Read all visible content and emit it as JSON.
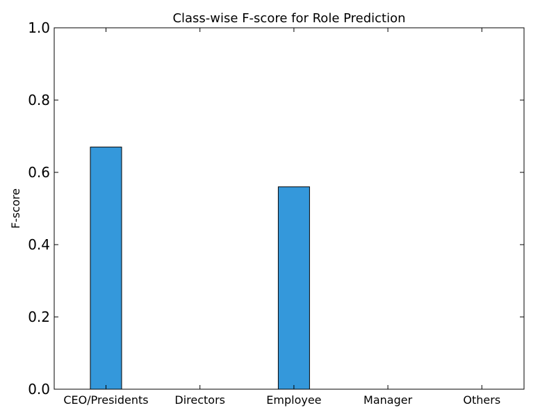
{
  "chart_data": {
    "type": "bar",
    "title": "Class-wise F-score for Role Prediction",
    "xlabel": "",
    "ylabel": "F-score",
    "categories": [
      "CEO/Presidents",
      "Directors",
      "Employee",
      "Manager",
      "Others"
    ],
    "values": [
      0.67,
      0.0,
      0.56,
      0.0,
      0.0
    ],
    "ylim": [
      0,
      1.0
    ],
    "yticks": [
      "0.0",
      "0.2",
      "0.4",
      "0.6",
      "0.8",
      "1.0"
    ],
    "grid": false,
    "legend": "none",
    "bar_color": "#3498db"
  }
}
